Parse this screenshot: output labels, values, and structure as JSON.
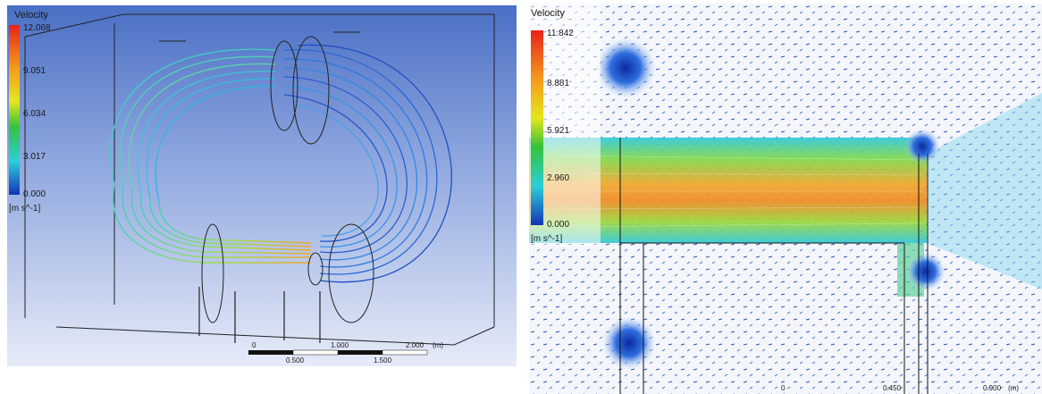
{
  "left": {
    "legend": {
      "title": "Velocity",
      "ticks": [
        "12.068",
        "9.051",
        "6.034",
        "3.017",
        "0.000"
      ],
      "unit": "[m s^-1]"
    },
    "scale": {
      "top": [
        "0",
        "1.000",
        "2.000",
        "(m)"
      ],
      "bottom": [
        "0.500",
        "1.500"
      ]
    }
  },
  "right": {
    "legend": {
      "title": "Velocity",
      "ticks": [
        "11.842",
        "8.881",
        "5.921",
        "2.960",
        "0.000"
      ],
      "unit": "[m s^-1]"
    },
    "scale": [
      "0",
      "0.450",
      "0.900",
      "(m)"
    ]
  },
  "colors": {
    "red": "#e8231a",
    "orange": "#f59a1c",
    "yellow": "#e6e61c",
    "green": "#35c23a",
    "cyan": "#2ad0d8",
    "blue": "#1434b8",
    "navy": "#0a2a9e"
  }
}
